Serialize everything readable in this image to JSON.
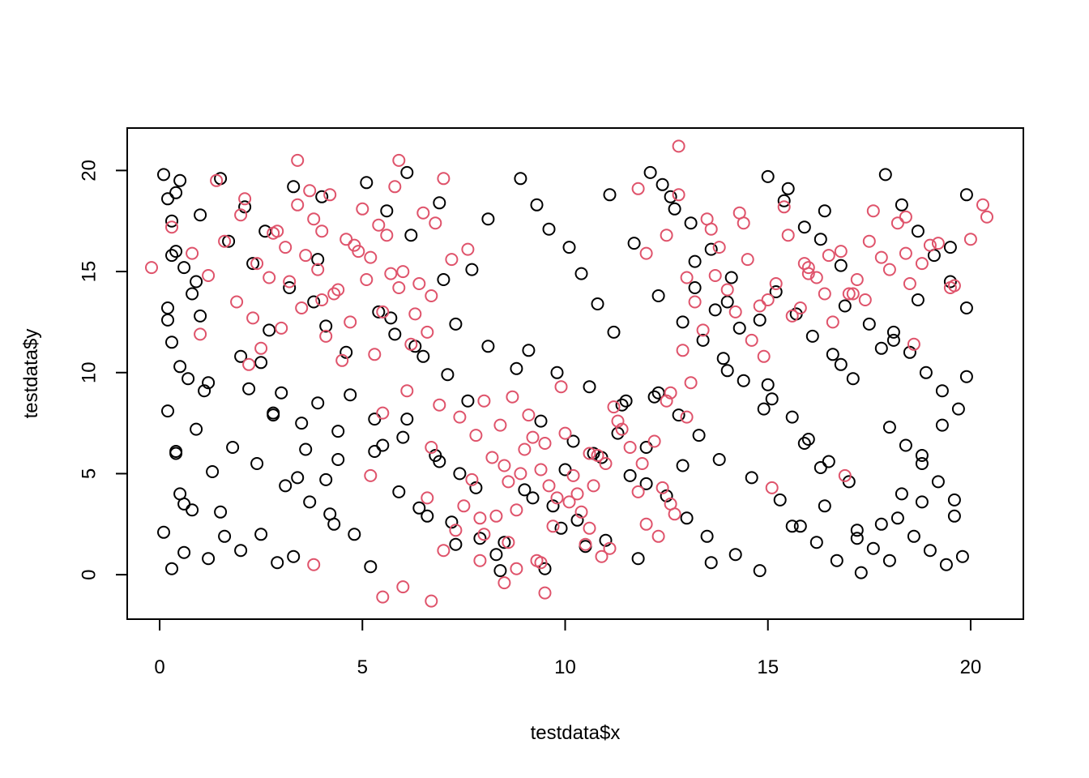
{
  "chart_data": {
    "type": "scatter",
    "title": "",
    "xlabel": "testdata$x",
    "ylabel": "testdata$y",
    "xlim": [
      -0.8,
      21.3
    ],
    "ylim": [
      -2.2,
      22.1
    ],
    "xticks": [
      0,
      5,
      10,
      15,
      20
    ],
    "yticks": [
      0,
      5,
      10,
      15,
      20
    ],
    "xtick_labels": [
      "0",
      "5",
      "10",
      "15",
      "20"
    ],
    "ytick_labels": [
      "0",
      "5",
      "10",
      "15",
      "20"
    ],
    "grid": false,
    "legend": "none",
    "colors": {
      "black_series": "#000000",
      "red_series": "#DF536B"
    },
    "series": [
      {
        "color": "#000000",
        "x": [
          0.1,
          0.2,
          0.3,
          0.4,
          0.6,
          0.8,
          1.0,
          0.3,
          0.5,
          1.1,
          0.2,
          0.9,
          0.4,
          1.3,
          0.5,
          0.8,
          0.1,
          0.6,
          1.2,
          0.3,
          0.2,
          0.9,
          0.5,
          0.4,
          1.0,
          0.3,
          0.7,
          0.2,
          0.4,
          0.6,
          1.5,
          2.1,
          2.6,
          3.2,
          3.8,
          4.1,
          4.6,
          2.2,
          2.8,
          3.5,
          1.8,
          2.4,
          3.1,
          3.7,
          4.3,
          1.6,
          2.0,
          2.9,
          3.3,
          4.0,
          2.5,
          3.0,
          3.9,
          4.4,
          1.7,
          2.3,
          3.4,
          4.2,
          4.8,
          2.7,
          5.1,
          5.6,
          6.2,
          5.4,
          5.8,
          6.5,
          7.1,
          7.6,
          5.3,
          6.0,
          6.8,
          7.4,
          5.9,
          6.4,
          7.2,
          7.9,
          8.3,
          5.2,
          6.1,
          6.9,
          5.7,
          6.3,
          7.0,
          7.7,
          8.1,
          5.5,
          6.6,
          7.3,
          8.4,
          8.8,
          8.9,
          9.3,
          9.6,
          10.1,
          10.4,
          10.8,
          11.2,
          9.1,
          9.8,
          10.6,
          11.4,
          9.4,
          10.2,
          10.9,
          11.6,
          9.0,
          9.7,
          10.3,
          11.0,
          11.8,
          9.5,
          10.0,
          10.7,
          11.3,
          12.0,
          9.2,
          9.9,
          10.5,
          11.1,
          11.7,
          12.1,
          12.6,
          13.1,
          13.6,
          14.1,
          12.3,
          12.9,
          13.4,
          13.9,
          14.4,
          12.2,
          12.8,
          13.3,
          13.8,
          14.6,
          12.5,
          13.0,
          13.5,
          14.2,
          14.8,
          12.4,
          12.7,
          13.2,
          13.7,
          14.3,
          12.0,
          12.9,
          13.6,
          14.0,
          14.9,
          15.0,
          15.4,
          15.9,
          16.3,
          16.8,
          15.2,
          15.7,
          16.1,
          16.6,
          17.1,
          15.1,
          15.6,
          16.0,
          16.5,
          17.0,
          15.3,
          15.8,
          16.2,
          16.7,
          17.3,
          15.5,
          16.4,
          16.9,
          17.5,
          17.8,
          15.0,
          15.9,
          16.3,
          17.2,
          17.6,
          17.9,
          18.3,
          18.7,
          19.1,
          19.5,
          19.9,
          18.1,
          18.5,
          18.9,
          19.3,
          19.7,
          18.0,
          18.4,
          18.8,
          19.2,
          19.6,
          18.2,
          18.6,
          19.0,
          19.4,
          19.8,
          17.8,
          18.3,
          18.8,
          19.3,
          19.9,
          18.1,
          18.7,
          19.5,
          19.9,
          1.2,
          2.0,
          2.8,
          3.6,
          4.4,
          1.5,
          2.5,
          3.3,
          4.1,
          4.7,
          5.3,
          6.1,
          6.9,
          7.8,
          8.5,
          13.2,
          14.0,
          14.8,
          15.6,
          16.4,
          17.2,
          18.0,
          18.8,
          19.6,
          11.5,
          12.3,
          7.3,
          8.1,
          3.9,
          16.8
        ],
        "y": [
          19.8,
          18.6,
          17.5,
          16.0,
          15.2,
          13.9,
          12.8,
          11.5,
          10.3,
          9.1,
          8.1,
          7.2,
          6.1,
          5.1,
          4.0,
          3.2,
          2.1,
          1.1,
          0.8,
          0.3,
          13.2,
          14.5,
          19.5,
          18.9,
          17.8,
          15.8,
          9.7,
          12.6,
          6.0,
          3.5,
          19.6,
          18.2,
          17.0,
          14.2,
          13.5,
          12.3,
          11.0,
          9.2,
          8.0,
          7.5,
          6.3,
          5.5,
          4.4,
          3.6,
          2.5,
          1.9,
          1.2,
          0.6,
          19.2,
          18.7,
          10.5,
          9.0,
          8.5,
          7.1,
          16.5,
          15.4,
          4.8,
          3.0,
          2.0,
          12.1,
          19.4,
          18.0,
          16.8,
          13.0,
          11.9,
          10.8,
          9.9,
          8.6,
          7.7,
          6.8,
          5.9,
          5.0,
          4.1,
          3.3,
          2.6,
          1.8,
          1.0,
          0.4,
          19.9,
          18.4,
          12.7,
          11.3,
          14.6,
          15.1,
          17.6,
          6.4,
          2.9,
          1.5,
          0.2,
          10.2,
          19.6,
          18.3,
          17.1,
          16.2,
          14.9,
          13.4,
          12.0,
          11.1,
          10.0,
          9.3,
          8.4,
          7.6,
          6.6,
          5.8,
          4.9,
          4.2,
          3.4,
          2.7,
          1.7,
          0.8,
          0.3,
          5.2,
          6.0,
          7.0,
          4.5,
          3.8,
          2.3,
          1.4,
          18.8,
          16.4,
          19.9,
          18.7,
          17.4,
          16.1,
          14.7,
          13.8,
          12.5,
          11.6,
          10.7,
          9.6,
          8.8,
          7.9,
          6.9,
          5.7,
          4.8,
          3.9,
          2.8,
          1.9,
          1.0,
          0.2,
          19.3,
          18.1,
          15.5,
          13.1,
          12.2,
          6.3,
          5.4,
          0.6,
          10.1,
          8.2,
          19.7,
          18.5,
          17.2,
          16.6,
          15.3,
          14.0,
          12.9,
          11.8,
          10.9,
          9.7,
          8.7,
          7.8,
          6.7,
          5.6,
          4.6,
          3.7,
          2.4,
          1.6,
          0.7,
          0.1,
          19.1,
          18.0,
          13.3,
          12.4,
          11.2,
          9.4,
          6.5,
          5.3,
          2.2,
          1.3,
          19.8,
          18.3,
          17.0,
          15.8,
          14.5,
          13.2,
          12.0,
          11.0,
          10.0,
          9.1,
          8.2,
          7.3,
          6.4,
          5.5,
          4.6,
          3.7,
          2.8,
          1.9,
          1.2,
          0.5,
          0.9,
          2.5,
          4.0,
          5.9,
          7.4,
          9.8,
          11.6,
          13.6,
          16.2,
          18.8,
          9.5,
          10.8,
          7.9,
          6.2,
          5.7,
          3.1,
          2.0,
          0.9,
          4.7,
          8.9,
          6.1,
          7.7,
          5.6,
          4.3,
          1.6,
          14.2,
          13.5,
          12.6,
          2.4,
          3.4,
          1.8,
          0.7,
          3.6,
          2.9,
          8.6,
          9.0,
          12.4,
          11.3,
          15.6,
          10.4
        ]
      },
      {
        "color": "#DF536B",
        "x": [
          -0.2,
          0.3,
          0.8,
          1.2,
          1.6,
          2.0,
          2.4,
          2.8,
          3.2,
          3.6,
          4.0,
          4.4,
          4.8,
          5.2,
          5.6,
          6.0,
          6.4,
          6.8,
          7.2,
          7.6,
          1.9,
          2.3,
          2.7,
          3.1,
          3.5,
          3.9,
          4.3,
          4.7,
          5.1,
          5.5,
          5.9,
          6.3,
          6.7,
          3.4,
          3.8,
          4.2,
          4.6,
          5.0,
          5.4,
          5.8,
          2.5,
          3.0,
          4.1,
          5.3,
          6.2,
          1.4,
          2.1,
          3.7,
          4.5,
          6.6,
          3.4,
          5.9,
          7.0,
          1.0,
          2.2,
          4.9,
          5.7,
          6.5,
          4.0,
          2.9,
          7.4,
          7.8,
          8.2,
          8.6,
          9.0,
          9.4,
          9.8,
          10.2,
          10.6,
          11.0,
          11.4,
          11.8,
          12.2,
          12.6,
          8.0,
          8.4,
          8.8,
          9.2,
          9.6,
          10.0,
          10.4,
          10.8,
          11.2,
          7.7,
          8.3,
          8.9,
          9.5,
          10.1,
          10.7,
          11.3,
          9.7,
          10.3,
          8.5,
          9.1,
          11.6,
          12.0,
          12.4,
          7.5,
          8.7,
          9.9,
          5.5,
          6.7,
          5.2,
          6.1,
          6.9,
          11.9,
          12.7,
          13.0,
          12.5,
          10.9,
          6.6,
          7.3,
          8.0,
          9.3,
          10.5,
          11.1,
          8.6,
          9.4,
          12.3,
          7.9,
          12.0,
          12.5,
          13.0,
          13.5,
          14.0,
          14.5,
          15.0,
          15.5,
          16.0,
          16.5,
          17.0,
          17.5,
          18.0,
          18.5,
          19.0,
          19.5,
          20.0,
          20.4,
          13.2,
          13.8,
          14.4,
          15.2,
          15.8,
          16.4,
          17.2,
          17.8,
          18.4,
          19.2,
          12.8,
          13.6,
          14.2,
          14.8,
          15.6,
          16.2,
          16.8,
          17.4,
          18.2,
          13.4,
          14.6,
          16.6,
          12.9,
          14.9,
          15.4,
          17.6,
          18.8,
          13.7,
          16.0,
          19.6,
          14.3,
          15.9,
          17.1,
          12.6,
          18.6,
          13.1,
          15.1,
          16.9,
          12.8,
          11.8,
          20.3,
          18.4,
          5.5,
          6.7,
          9.5,
          8.5,
          6.0,
          7.0,
          8.8,
          10.6,
          3.8,
          7.9
        ],
        "y": [
          15.2,
          17.2,
          15.9,
          14.8,
          16.5,
          17.8,
          15.4,
          16.9,
          14.5,
          15.8,
          17.0,
          14.1,
          16.3,
          15.7,
          16.8,
          15.0,
          14.4,
          17.4,
          15.6,
          16.1,
          13.5,
          12.7,
          14.7,
          16.2,
          13.2,
          15.1,
          13.9,
          12.5,
          14.6,
          13.0,
          14.2,
          12.9,
          13.8,
          18.3,
          17.6,
          18.8,
          16.6,
          18.1,
          17.3,
          19.2,
          11.2,
          12.2,
          11.8,
          10.9,
          11.4,
          19.5,
          18.6,
          19.0,
          10.6,
          12.0,
          20.5,
          20.5,
          19.6,
          11.9,
          10.4,
          16.0,
          14.9,
          17.9,
          13.6,
          17.0,
          7.8,
          6.9,
          5.8,
          4.6,
          6.2,
          5.2,
          3.8,
          4.9,
          6.0,
          5.5,
          7.2,
          4.1,
          6.6,
          3.5,
          8.6,
          7.4,
          3.2,
          6.8,
          4.4,
          7.0,
          3.1,
          5.9,
          8.3,
          4.7,
          2.9,
          5.0,
          6.5,
          3.6,
          4.4,
          7.6,
          2.4,
          4.0,
          5.4,
          7.9,
          6.3,
          2.5,
          4.3,
          3.4,
          8.8,
          9.3,
          8.0,
          6.3,
          4.9,
          9.1,
          8.4,
          5.5,
          3.0,
          7.8,
          8.6,
          0.9,
          3.8,
          2.2,
          2.0,
          0.7,
          1.5,
          1.3,
          1.6,
          0.6,
          1.9,
          2.8,
          15.9,
          16.8,
          14.7,
          17.6,
          14.1,
          15.6,
          13.6,
          16.8,
          14.9,
          15.8,
          13.9,
          16.5,
          15.1,
          14.4,
          16.3,
          14.2,
          16.6,
          17.7,
          13.5,
          16.2,
          17.4,
          14.4,
          13.2,
          13.9,
          14.6,
          15.7,
          15.9,
          16.4,
          18.8,
          17.1,
          13.0,
          13.3,
          12.8,
          14.7,
          16.0,
          13.6,
          17.4,
          12.1,
          11.6,
          12.5,
          11.1,
          10.8,
          18.2,
          18.0,
          15.4,
          14.8,
          15.2,
          14.3,
          17.9,
          15.4,
          13.9,
          9.0,
          11.4,
          9.5,
          4.3,
          4.9,
          21.2,
          19.1,
          18.3,
          17.7,
          -1.1,
          -1.3,
          -0.9,
          -0.4,
          -0.6,
          1.2,
          0.3,
          2.3,
          0.5,
          0.7
        ]
      }
    ]
  }
}
